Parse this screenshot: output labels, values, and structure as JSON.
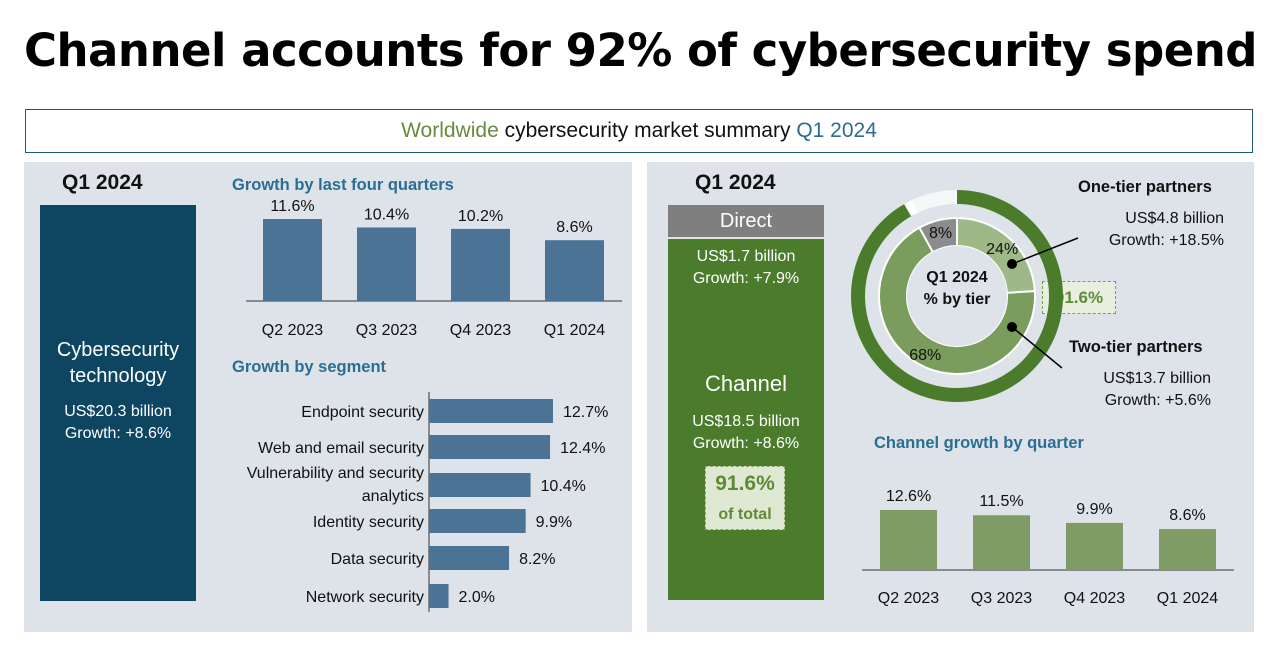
{
  "title": "Channel accounts for 92% of cybersecurity spend",
  "summary": {
    "part1": "Worldwide",
    "part2": " cybersecurity market summary ",
    "part3": "Q1 2024"
  },
  "colors": {
    "navy": "#0e4560",
    "bar_blue": "#4a7396",
    "channel_green": "#4a7c2c",
    "bar_green": "#809c66",
    "direct_gray": "#7f7f7f",
    "heading_blue": "#2a6f93"
  },
  "left": {
    "quarter_label": "Q1 2024",
    "tech_box": {
      "title_line1": "Cybersecurity",
      "title_line2": "technology",
      "amount": "US$20.3 billion",
      "growth": "Growth: +8.6%"
    },
    "quarters_heading": "Growth by last four quarters",
    "segments_heading": "Growth by segment"
  },
  "right": {
    "quarter_label": "Q1 2024",
    "direct": {
      "label": "Direct",
      "amount": "US$1.7 billion",
      "growth": "Growth: +7.9%"
    },
    "channel": {
      "label": "Channel",
      "amount": "US$18.5 billion",
      "growth": "Growth: +8.6%",
      "share_value": "91.6%",
      "share_label": "of total"
    },
    "one_tier": {
      "title": "One-tier partners",
      "amount": "US$4.8 billion",
      "growth": "Growth: +18.5%"
    },
    "two_tier": {
      "title": "Two-tier partners",
      "amount": "US$13.7 billion",
      "growth": "Growth: +5.6%"
    },
    "donut_center_line1": "Q1 2024",
    "donut_center_line2": "% by tier",
    "channel_callout": "91.6%",
    "channel_growth_heading": "Channel growth by quarter"
  },
  "chart_data": [
    {
      "type": "bar",
      "title": "Growth by last four quarters",
      "categories": [
        "Q2 2023",
        "Q3 2023",
        "Q4 2023",
        "Q1 2024"
      ],
      "values": [
        11.6,
        10.4,
        10.2,
        8.6
      ],
      "value_labels": [
        "11.6%",
        "10.4%",
        "10.2%",
        "8.6%"
      ],
      "ylim": [
        0,
        12
      ]
    },
    {
      "type": "bar",
      "orientation": "horizontal",
      "title": "Growth by segment",
      "categories": [
        "Endpoint security",
        "Web and email security",
        "Vulnerability and security analytics",
        "Identity security",
        "Data security",
        "Network security"
      ],
      "category_lines": [
        [
          "Endpoint security"
        ],
        [
          "Web and email security"
        ],
        [
          "Vulnerability and security",
          "analytics"
        ],
        [
          "Identity security"
        ],
        [
          "Data security"
        ],
        [
          "Network security"
        ]
      ],
      "values": [
        12.7,
        12.4,
        10.4,
        9.9,
        8.2,
        2.0
      ],
      "value_labels": [
        "12.7%",
        "12.4%",
        "10.4%",
        "9.9%",
        "8.2%",
        "2.0%"
      ],
      "xlim": [
        0,
        13
      ]
    },
    {
      "type": "pie",
      "title": "Q1 2024 % by tier",
      "labels": [
        "Direct",
        "One-tier partners",
        "Two-tier partners"
      ],
      "values": [
        8,
        24,
        68
      ],
      "value_labels": [
        "8%",
        "24%",
        "68%"
      ]
    },
    {
      "type": "bar",
      "title": "Channel growth by quarter",
      "categories": [
        "Q2 2023",
        "Q3 2023",
        "Q4 2023",
        "Q1 2024"
      ],
      "values": [
        12.6,
        11.5,
        9.9,
        8.6
      ],
      "value_labels": [
        "12.6%",
        "11.5%",
        "9.9%",
        "8.6%"
      ],
      "ylim": [
        0,
        13
      ]
    }
  ]
}
